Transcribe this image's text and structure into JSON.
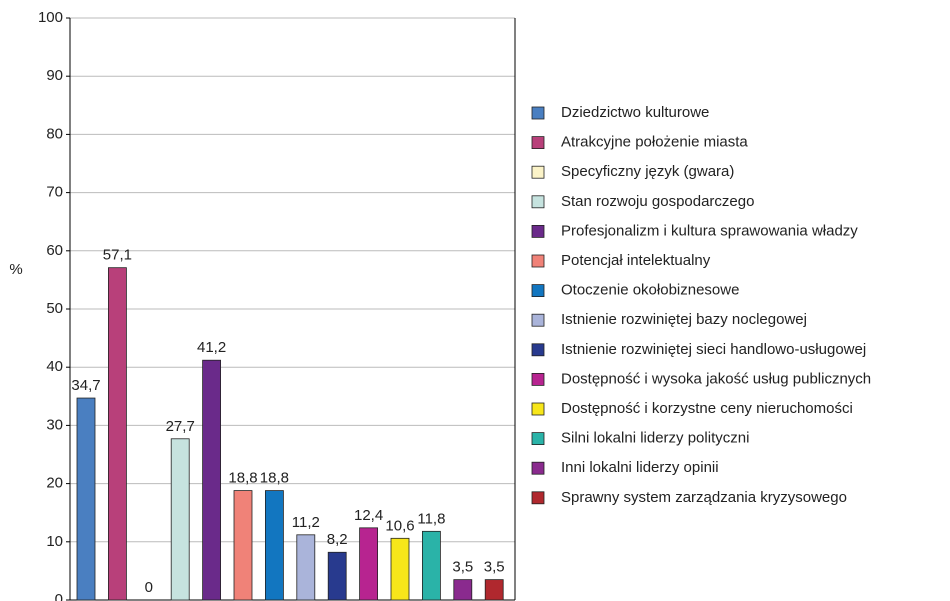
{
  "chart_data": {
    "type": "bar",
    "y_label": "%",
    "categories": [
      "Dziedzictwo kulturowe",
      "Atrakcyjne położenie miasta",
      "Specyficzny język (gwara)",
      "Stan rozwoju gospodarczego",
      "Profesjonalizm i kultura sprawowania władzy",
      "Potencjał intelektualny",
      "Otoczenie okołobiznesowe",
      "Istnienie rozwiniętej bazy noclegowej",
      "Istnienie rozwiniętej sieci handlowo-usługowej",
      "Dostępność i wysoka jakość usług publicznych",
      "Dostępność i korzystne ceny nieruchomości",
      "Silni lokalni liderzy polityczni",
      "Inni lokalni liderzy opinii",
      "Sprawny system zarządzania kryzysowego"
    ],
    "values": [
      34.7,
      57.1,
      0,
      27.7,
      41.2,
      18.8,
      18.8,
      11.2,
      8.2,
      12.4,
      10.6,
      11.8,
      3.5,
      3.5
    ],
    "value_labels": [
      "34,7",
      "57,1",
      "0",
      "27,7",
      "41,2",
      "18,8",
      "18,8",
      "11,2",
      "8,2",
      "12,4",
      "10,6",
      "11,8",
      "3,5",
      "3,5"
    ],
    "colors": [
      "#4a7fc1",
      "#b8407a",
      "#fbf3c8",
      "#c6e3df",
      "#6a2a8a",
      "#f08278",
      "#1276c0",
      "#aab4da",
      "#283a8e",
      "#b72490",
      "#f7e61a",
      "#2ab3a8",
      "#8a2a8e",
      "#b0282e"
    ],
    "ylim": [
      0,
      100
    ],
    "yticks": [
      0,
      10,
      20,
      30,
      40,
      50,
      60,
      70,
      80,
      90,
      100
    ],
    "grid": true,
    "legend": "right"
  }
}
